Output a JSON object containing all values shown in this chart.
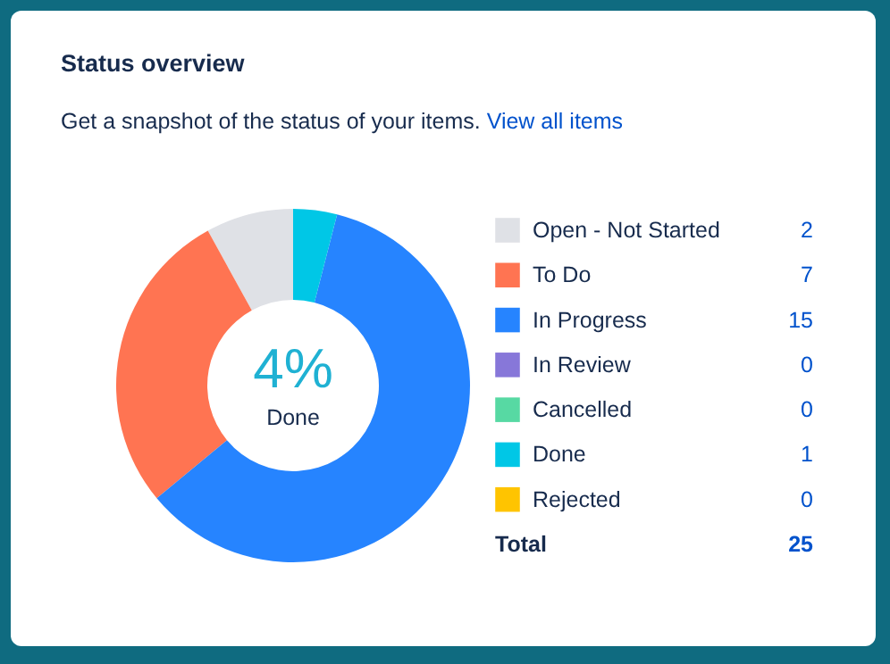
{
  "chart_data": {
    "type": "donut",
    "title": "Status overview",
    "subtitle": "Get a snapshot of the status of your items.",
    "categories": [
      "Open - Not Started",
      "To Do",
      "In Progress",
      "In Review",
      "Cancelled",
      "Done",
      "Rejected"
    ],
    "values": [
      2,
      7,
      15,
      0,
      0,
      1,
      0
    ],
    "colors": [
      "#dfe1e6",
      "#ff7452",
      "#2684ff",
      "#8777d9",
      "#57d9a3",
      "#00c7e6",
      "#ffc400"
    ],
    "annotations": [
      "4%",
      "Done",
      "View all items",
      "Total"
    ],
    "totals": [
      "25"
    ],
    "value_labels": [
      "2",
      "7",
      "15",
      "0",
      "0",
      "1",
      "0"
    ],
    "legend": "right"
  }
}
